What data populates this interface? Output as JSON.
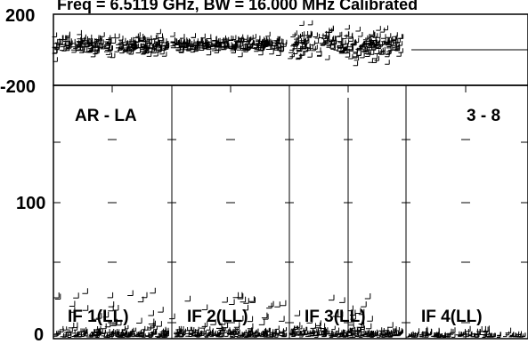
{
  "title": "Freq = 6.5119 GHz, BW = 16.000 MHz  Calibrated",
  "top_panel": {
    "y_ticks": [
      "200",
      "-200"
    ],
    "ylim": [
      -200,
      200
    ]
  },
  "bottom_panel": {
    "baseline_label": "AR - LA",
    "range_label": "3 - 8",
    "y_ticks": [
      "100",
      "0"
    ],
    "ylim": [
      0,
      190
    ]
  },
  "if_labels": [
    "IF 1(LL)",
    "IF 2(LL)",
    "IF 3(LL)",
    "IF 4(LL)"
  ],
  "colors": {
    "ink": "#000000",
    "background": "#ffffff"
  },
  "chart_data": {
    "type": "scatter",
    "title": "Freq = 6.5119 GHz, BW = 16.000 MHz  Calibrated",
    "panels": [
      {
        "name": "phase",
        "ylim": [
          -200,
          200
        ],
        "y_ticks": [
          200,
          -200
        ],
        "series": [
          {
            "if": "IF 1(LL)",
            "center": 20,
            "spread": 55
          },
          {
            "if": "IF 2(LL)",
            "center": 20,
            "spread": 45
          },
          {
            "if": "IF 3(LL)",
            "center": 20,
            "spread": 85
          },
          {
            "if": "IF 4(LL)",
            "center": 20,
            "spread": 0
          }
        ]
      },
      {
        "name": "amplitude",
        "ylim": [
          0,
          190
        ],
        "y_ticks": [
          100,
          0
        ],
        "series": [
          {
            "if": "IF 1(LL)",
            "typical": 5,
            "max": 35
          },
          {
            "if": "IF 2(LL)",
            "typical": 5,
            "max": 32
          },
          {
            "if": "IF 3(LL)",
            "typical": 5,
            "max": 30
          },
          {
            "if": "IF 4(LL)",
            "typical": 2,
            "max": 6
          }
        ]
      }
    ]
  }
}
